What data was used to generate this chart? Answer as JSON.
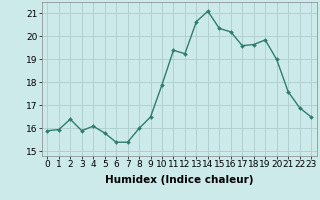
{
  "x": [
    0,
    1,
    2,
    3,
    4,
    5,
    6,
    7,
    8,
    9,
    10,
    11,
    12,
    13,
    14,
    15,
    16,
    17,
    18,
    19,
    20,
    21,
    22,
    23
  ],
  "y": [
    15.9,
    15.95,
    16.4,
    15.9,
    16.1,
    15.8,
    15.4,
    15.4,
    16.0,
    16.5,
    17.9,
    19.4,
    19.25,
    20.65,
    21.1,
    20.35,
    20.2,
    19.6,
    19.65,
    19.85,
    19.0,
    17.6,
    16.9,
    16.5
  ],
  "line_color": "#2e7d6e",
  "marker": "D",
  "marker_size": 2.0,
  "line_width": 1.0,
  "bg_color": "#cceaea",
  "grid_color": "#b0cccc",
  "xlabel": "Humidex (Indice chaleur)",
  "xlabel_fontsize": 7.5,
  "tick_fontsize": 6.5,
  "ylim": [
    14.8,
    21.5
  ],
  "yticks": [
    15,
    16,
    17,
    18,
    19,
    20,
    21
  ],
  "xlim": [
    -0.5,
    23.5
  ],
  "xticks": [
    0,
    1,
    2,
    3,
    4,
    5,
    6,
    7,
    8,
    9,
    10,
    11,
    12,
    13,
    14,
    15,
    16,
    17,
    18,
    19,
    20,
    21,
    22,
    23
  ]
}
